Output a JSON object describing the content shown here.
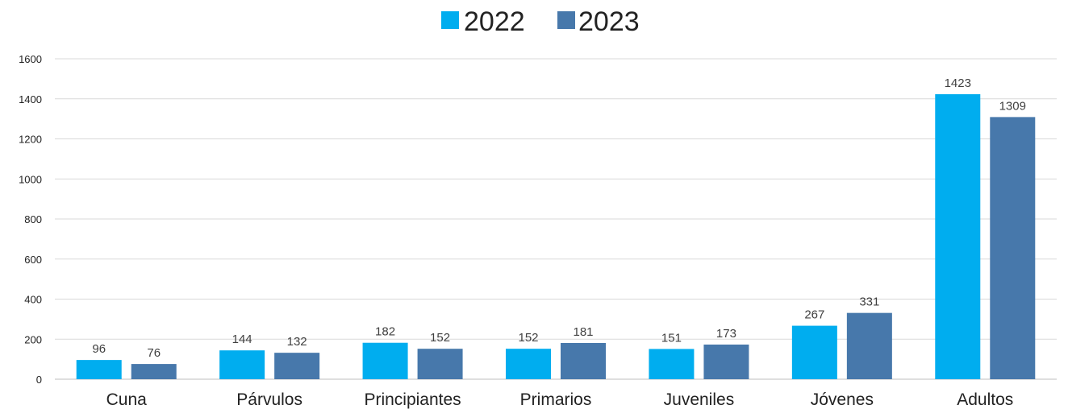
{
  "chart_data": {
    "type": "bar",
    "categories": [
      "Cuna",
      "Párvulos",
      "Principiantes",
      "Primarios",
      "Juveniles",
      "Jóvenes",
      "Adultos"
    ],
    "series": [
      {
        "name": "2022",
        "color": "#00adef",
        "values": [
          96,
          144,
          182,
          152,
          151,
          267,
          1423
        ]
      },
      {
        "name": "2023",
        "color": "#4778ab",
        "values": [
          76,
          132,
          152,
          181,
          173,
          331,
          1309
        ]
      }
    ],
    "ylim": [
      0,
      1600
    ],
    "yticks": [
      "0",
      "200",
      "400",
      "600",
      "800",
      "1000",
      "1200",
      "1400",
      "1600"
    ],
    "grid": true,
    "legend_position": "top-center"
  }
}
